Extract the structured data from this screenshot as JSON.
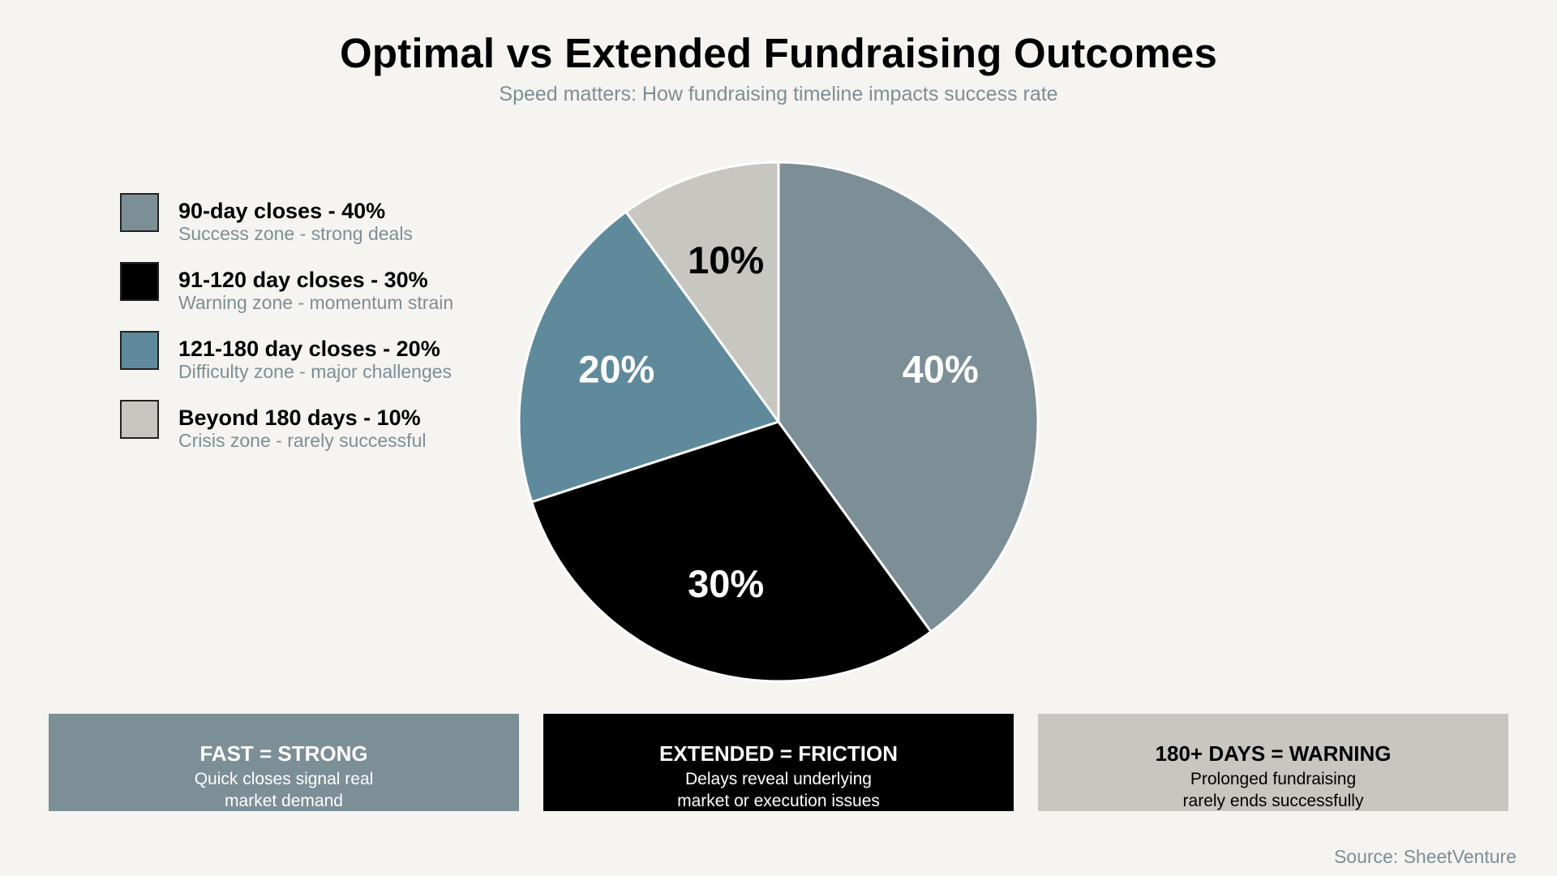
{
  "chart_data": {
    "type": "pie",
    "title": "Optimal vs Extended Fundraising Outcomes",
    "subtitle": "Speed matters: How fundraising timeline impacts success rate",
    "slices": [
      {
        "legend": "90-day closes - 40%",
        "description": "Success zone - strong deals",
        "value": 40,
        "label": "40%",
        "color": "#7c8e96",
        "label_color": "#ffffff"
      },
      {
        "legend": "91-120 day closes - 30%",
        "description": "Warning zone - momentum strain",
        "value": 30,
        "label": "30%",
        "color": "#000000",
        "label_color": "#ffffff"
      },
      {
        "legend": "121-180 day closes - 20%",
        "description": "Difficulty zone - major challenges",
        "value": 20,
        "label": "20%",
        "color": "#5f8a9c",
        "label_color": "#ffffff"
      },
      {
        "legend": "Beyond 180 days - 10%",
        "description": "Crisis zone - rarely successful",
        "value": 10,
        "label": "10%",
        "color": "#c8c6c1",
        "label_color": "#000000"
      }
    ],
    "legend_position": "left"
  },
  "callouts": [
    {
      "title": "FAST = STRONG",
      "lines": [
        "Quick closes signal real",
        "market demand"
      ],
      "background": "#7c8e96",
      "text_color": "#ffffff"
    },
    {
      "title": "EXTENDED = FRICTION",
      "lines": [
        "Delays reveal underlying",
        "market or execution issues"
      ],
      "background": "#000000",
      "text_color": "#ffffff"
    },
    {
      "title": "180+ DAYS = WARNING",
      "lines": [
        "Prolonged fundraising",
        "rarely ends successfully"
      ],
      "background": "#c8c6c1",
      "text_color": "#000000"
    }
  ],
  "source": "Source: SheetVenture"
}
